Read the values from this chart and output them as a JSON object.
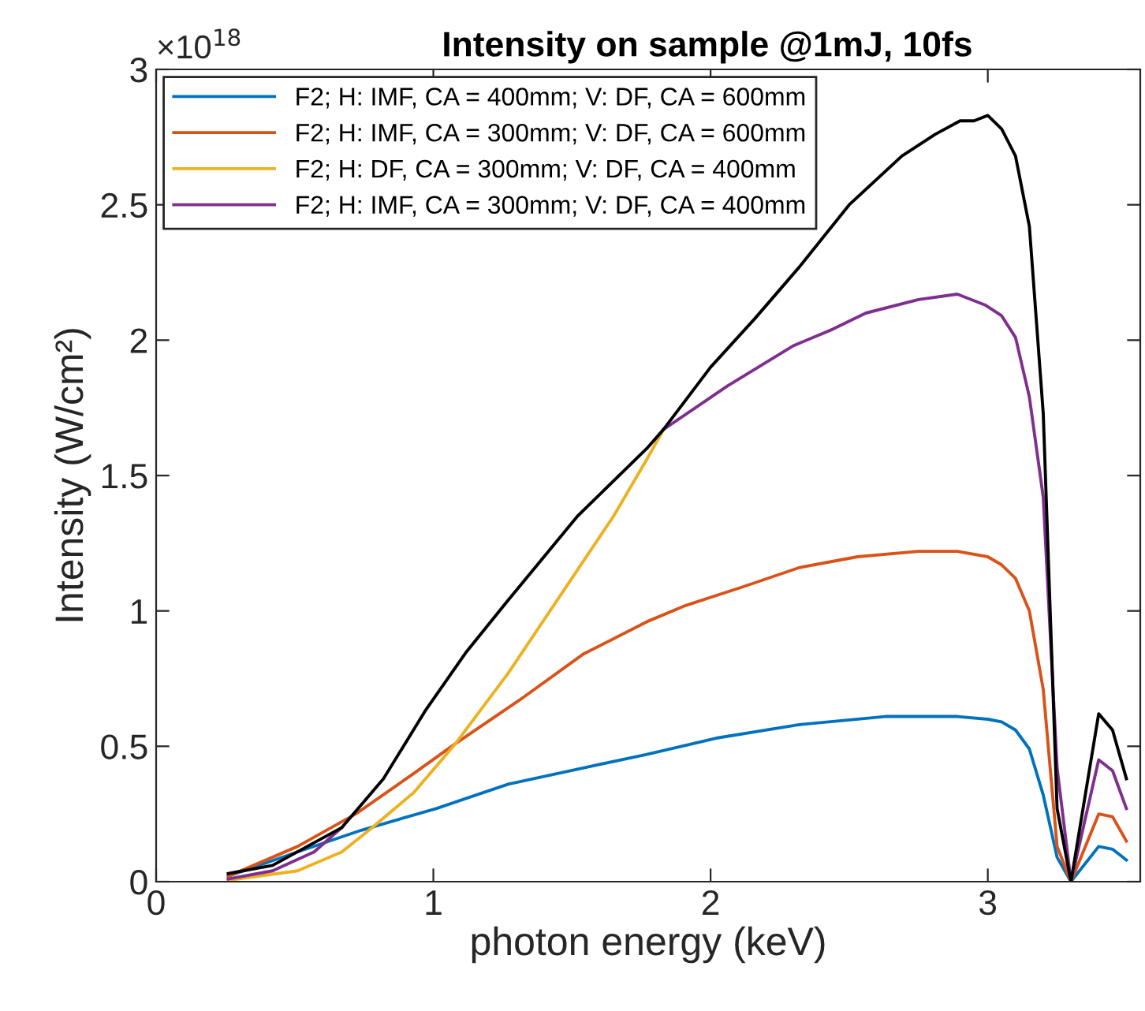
{
  "chart_data": {
    "type": "line",
    "title": "Intensity on sample @1mJ, 10fs",
    "xlabel": "photon energy (keV)",
    "ylabel": "Intensity (W/cm²)",
    "annotations": [
      "×10$^{18}$"
    ],
    "xlim": [
      0,
      3.55
    ],
    "xticks": [
      0,
      1,
      2,
      3
    ],
    "ylim": [
      0,
      3
    ],
    "yticks": [
      0,
      0.5,
      1,
      1.5,
      2,
      2.5,
      3
    ],
    "grid": false,
    "legend": "top left",
    "marker": "none",
    "line_style": "solid",
    "series": [
      {
        "name": "F2; H: IMF, CA = 400mm; V: DF, CA = 600mm",
        "color": "#0072bd",
        "x": [
          0.26,
          0.51,
          0.74,
          1.01,
          1.27,
          1.54,
          1.77,
          2.02,
          2.32,
          2.63,
          2.89,
          3.0,
          3.05,
          3.1,
          3.15,
          3.2,
          3.25,
          3.3,
          3.4,
          3.45,
          3.5
        ],
        "values": [
          0.02,
          0.11,
          0.19,
          0.27,
          0.36,
          0.42,
          0.47,
          0.53,
          0.58,
          0.61,
          0.61,
          0.6,
          0.59,
          0.56,
          0.49,
          0.32,
          0.09,
          0,
          0.13,
          0.12,
          0.08
        ]
      },
      {
        "name": "F2; H: IMF, CA = 300mm; V: DF, CA = 600mm",
        "color": "#d95319",
        "x": [
          0.26,
          0.51,
          0.72,
          0.93,
          1.08,
          1.31,
          1.54,
          1.77,
          1.91,
          2.12,
          2.32,
          2.53,
          2.75,
          2.89,
          3.0,
          3.05,
          3.1,
          3.15,
          3.2,
          3.25,
          3.3,
          3.4,
          3.45,
          3.5
        ],
        "values": [
          0.02,
          0.13,
          0.25,
          0.4,
          0.51,
          0.67,
          0.84,
          0.96,
          1.02,
          1.09,
          1.16,
          1.2,
          1.22,
          1.22,
          1.2,
          1.17,
          1.12,
          1.0,
          0.71,
          0.13,
          0,
          0.25,
          0.24,
          0.15
        ]
      },
      {
        "name": "F2; H: DF, CA = 300mm; V: DF, CA = 400mm",
        "color": "#edb120",
        "x": [
          0.26,
          0.51,
          0.67,
          0.78,
          0.93,
          1.08,
          1.27,
          1.46,
          1.65,
          1.77,
          1.83
        ],
        "values": [
          0.005,
          0.04,
          0.11,
          0.2,
          0.33,
          0.51,
          0.77,
          1.06,
          1.35,
          1.56,
          1.67
        ]
      },
      {
        "name": "F2; H: IMF, CA = 300mm; V: DF, CA = 400mm",
        "color": "#7e2f8e",
        "x": [
          0.26,
          0.42,
          0.57,
          0.67,
          1.2,
          1.83,
          2.06,
          2.3,
          2.44,
          2.56,
          2.75,
          2.89,
          2.99,
          3.05,
          3.1,
          3.15,
          3.2,
          3.25,
          3.3,
          3.4,
          3.45,
          3.5
        ],
        "values": [
          0.01,
          0.04,
          0.11,
          0.2,
          null,
          1.67,
          1.83,
          1.98,
          2.04,
          2.1,
          2.15,
          2.17,
          2.13,
          2.09,
          2.01,
          1.79,
          1.42,
          0.42,
          0,
          0.45,
          0.41,
          0.27
        ]
      },
      {
        "color": "#000000",
        "x": [
          0.26,
          0.42,
          0.67,
          0.82,
          0.97,
          1.12,
          1.27,
          1.52,
          1.77,
          1.83,
          2.0,
          2.16,
          2.32,
          2.5,
          2.69,
          2.81,
          2.9,
          2.95,
          3.0,
          3.05,
          3.1,
          3.15,
          3.2,
          3.25,
          3.3,
          3.4,
          3.45,
          3.5
        ],
        "values": [
          0.03,
          0.06,
          0.2,
          0.38,
          0.63,
          0.85,
          1.04,
          1.35,
          1.6,
          1.67,
          1.9,
          2.08,
          2.27,
          2.5,
          2.68,
          2.76,
          2.81,
          2.81,
          2.83,
          2.78,
          2.68,
          2.42,
          1.73,
          0.27,
          0,
          0.62,
          0.56,
          0.38
        ]
      }
    ]
  }
}
